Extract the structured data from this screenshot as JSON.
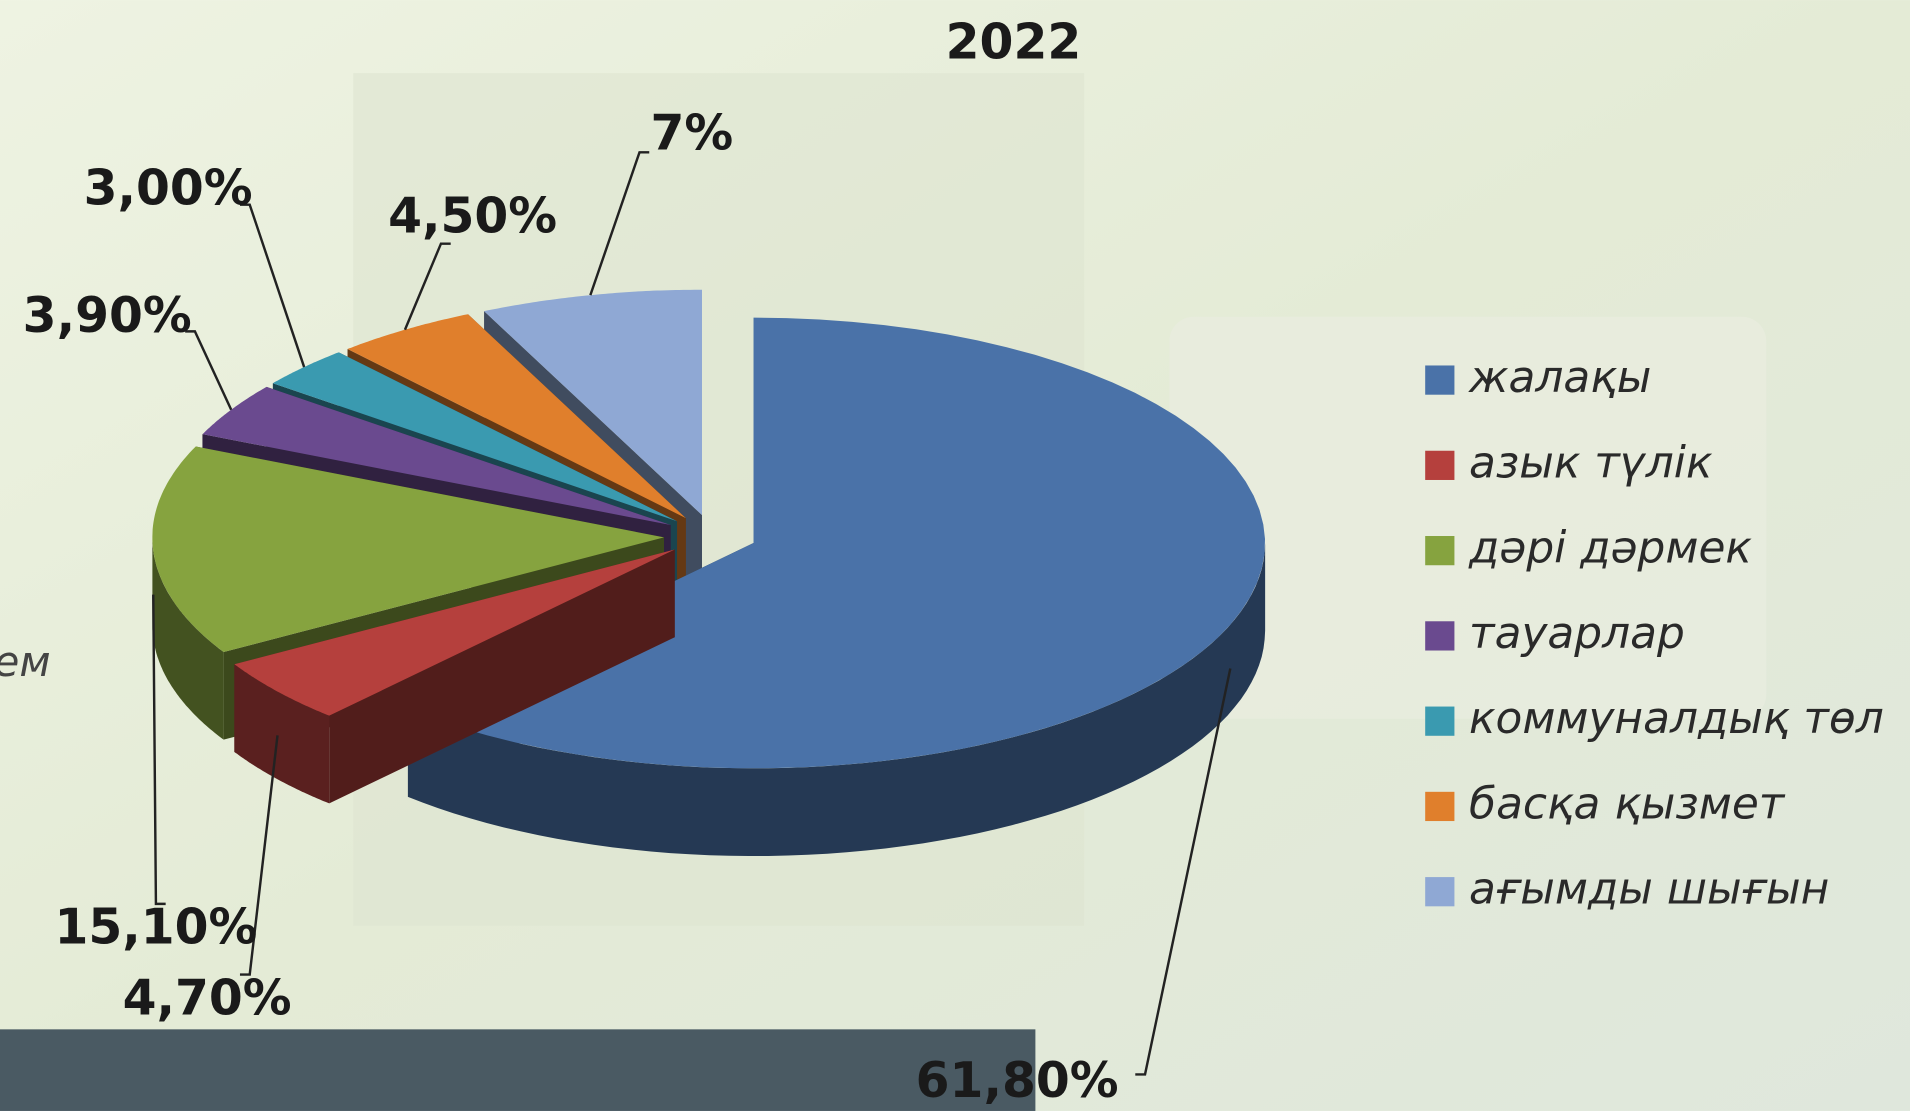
{
  "chart_data": {
    "type": "pie3d",
    "title": "2022",
    "categories": [
      "жалақы",
      "азык түлік",
      "дәрі дәрмек",
      "тауарлар",
      "коммуналдық төл",
      "басқа қызмет",
      "ағымды шығын"
    ],
    "values": [
      61.8,
      4.7,
      15.1,
      3.9,
      3.0,
      4.5,
      7
    ],
    "value_labels": [
      "61,80%",
      "4,70%",
      "15,10%",
      "3,90%",
      "3,00%",
      "4,50%",
      "7%"
    ],
    "colors": [
      "#4a72a8",
      "#b5403d",
      "#86a33f",
      "#6a4a8f",
      "#3a9ab0",
      "#e07f2c",
      "#8fa8d4"
    ],
    "legend": "right"
  },
  "background_text": "ем"
}
